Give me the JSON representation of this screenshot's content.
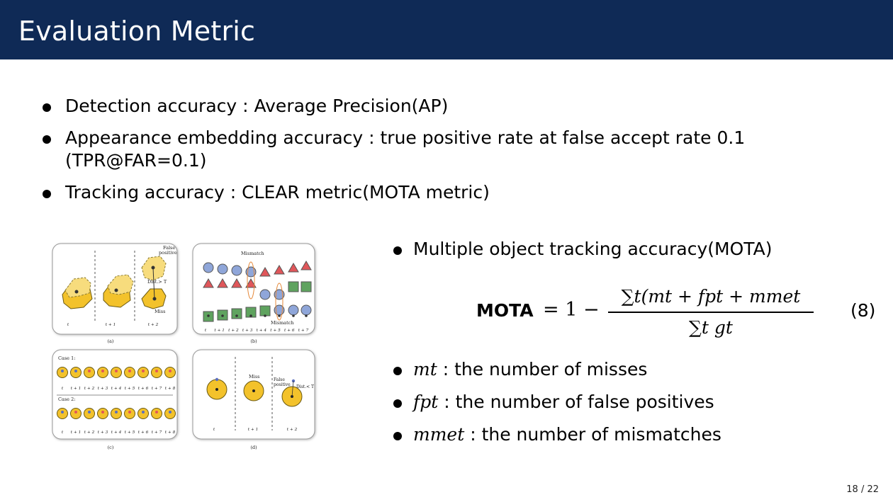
{
  "header": {
    "title": "Evaluation Metric"
  },
  "bullets": [
    {
      "text": "Detection accuracy : Average Precision(AP)"
    },
    {
      "text": "Appearance embedding accuracy : true positive rate at false accept rate 0.1",
      "text2": "(TPR@FAR=0.1)"
    },
    {
      "text": "Tracking accuracy : CLEAR metric(MOTA metric)"
    }
  ],
  "right": {
    "mota_title": "Multiple object tracking accuracy(MOTA)",
    "equation": {
      "lhs": "MOTA",
      "equals": "= 1 −",
      "numerator": "∑t(mt + fpt + mmet",
      "denominator": "∑t gt",
      "tag": "(8)"
    },
    "defs": [
      {
        "sym": "mt",
        "text": " : the number of misses"
      },
      {
        "sym": "fpt",
        "text": " : the number of false positives"
      },
      {
        "sym": "mmet",
        "text": " : the number of mismatches"
      }
    ]
  },
  "figure": {
    "labels": {
      "a": "(a)",
      "b": "(b)",
      "c": "(c)",
      "d": "(d)",
      "false_positive": "False positive",
      "mismatch": "Mismatch",
      "miss": "Miss",
      "dist": "Dist.> T",
      "dist_d": "Dist.< T",
      "case1": "Case 1:",
      "case2": "Case 2:"
    },
    "time_a": [
      "t",
      "t + 1",
      "t + 2"
    ],
    "time_b": [
      "t",
      "t + 1",
      "t + 2",
      "t + 3",
      "t + 4",
      "t + 5",
      "t + 6",
      "t + 7"
    ],
    "time_c": [
      "t",
      "t + 1",
      "t + 2",
      "t + 3",
      "t + 4",
      "t + 5",
      "t + 6",
      "t + 7",
      "t + 8"
    ],
    "time_d": [
      "t",
      "t + 1",
      "t + 2"
    ],
    "colors": {
      "yellow": "#f3c22b",
      "blue": "#8fa6d9",
      "red": "#e0565a",
      "green": "#5fa35f"
    }
  },
  "page": {
    "number": "18 / 22"
  }
}
